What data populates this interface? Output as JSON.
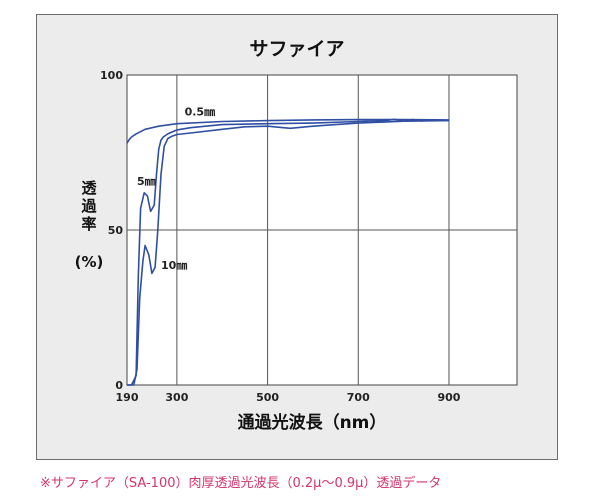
{
  "chart_data": {
    "type": "line",
    "title": "サファイア",
    "xlabel": "通過光波長（nm）",
    "ylabel_lines": [
      "透",
      "過",
      "率"
    ],
    "ylabel_unit": "(%)",
    "xlim": [
      190,
      1050
    ],
    "ylim": [
      0,
      100
    ],
    "xticks": [
      {
        "value": 190,
        "label": "190"
      },
      {
        "value": 300,
        "label": "300"
      },
      {
        "value": 500,
        "label": "500"
      },
      {
        "value": 700,
        "label": "700"
      },
      {
        "value": 900,
        "label": "900"
      }
    ],
    "yticks": [
      {
        "value": 0,
        "label": "0"
      },
      {
        "value": 50,
        "label": "50"
      },
      {
        "value": 100,
        "label": "100"
      }
    ],
    "grid": true,
    "line_color": "#2f4fa3",
    "series": [
      {
        "name": "0.5㎜",
        "x": [
          190,
          195,
          200,
          210,
          230,
          260,
          300,
          400,
          500,
          600,
          700,
          800,
          900
        ],
        "y": [
          78,
          79.2,
          80,
          81,
          82.5,
          83.5,
          84.3,
          85,
          85.3,
          85.5,
          85.6,
          85.6,
          85.5
        ]
      },
      {
        "name": "5㎜",
        "x": [
          190,
          200,
          210,
          215,
          220,
          228,
          235,
          242,
          250,
          255,
          260,
          265,
          270,
          280,
          300,
          330,
          400,
          500,
          600,
          700,
          760,
          780,
          800,
          820,
          840,
          860,
          880,
          900
        ],
        "y": [
          0,
          0,
          3,
          35,
          57,
          62,
          61,
          56,
          58,
          68,
          76,
          79,
          80,
          81,
          82.3,
          83,
          84,
          84.3,
          84.5,
          85,
          85.3,
          85.7,
          85.1,
          85.6,
          85.2,
          85.5,
          85.3,
          85.4
        ]
      },
      {
        "name": "10㎜",
        "x": [
          190,
          205,
          212,
          218,
          225,
          230,
          238,
          245,
          252,
          258,
          265,
          272,
          280,
          290,
          300,
          330,
          400,
          450,
          500,
          550,
          600,
          650,
          700,
          800,
          900
        ],
        "y": [
          0,
          0,
          5,
          28,
          40,
          45,
          42,
          36,
          38,
          50,
          68,
          77,
          79.5,
          80.3,
          80.8,
          81.3,
          82.5,
          83.3,
          83.5,
          82.8,
          83.5,
          84,
          84.5,
          85.1,
          85.3
        ]
      }
    ],
    "annotations": [
      {
        "text": "0.5㎜",
        "x": 317,
        "y": 87
      },
      {
        "text": "5㎜",
        "x": 212,
        "y": 64.5
      },
      {
        "text": "10㎜",
        "x": 265,
        "y": 37.5
      }
    ]
  },
  "caption": "※サファイア（SA-100）肉厚透過光波長（0.2μ～0.9μ）透過データ"
}
